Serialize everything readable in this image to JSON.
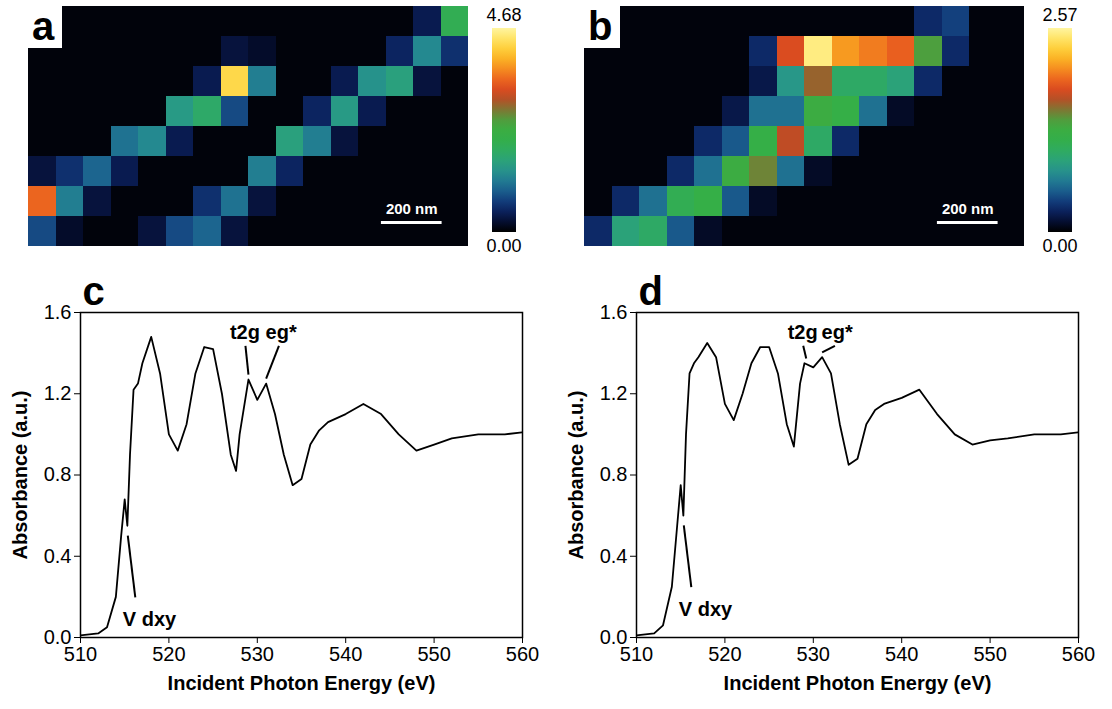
{
  "chart_data": [
    {
      "type": "heatmap",
      "panel_label": "a",
      "tick_labels": false,
      "xlim": [
        0,
        1450
      ],
      "ylim": [
        0,
        580
      ],
      "cells": [
        [
          0.05,
          0.05,
          0.05,
          0.05,
          0.05,
          0.05,
          0.05,
          0.05,
          0.05,
          0.05,
          0.05,
          0.05,
          0.05,
          0.05,
          0.4,
          2.0
        ],
        [
          0.05,
          0.05,
          0.05,
          0.05,
          0.05,
          0.05,
          0.05,
          0.3,
          0.2,
          0.05,
          0.05,
          0.05,
          0.05,
          0.5,
          1.3,
          0.6
        ],
        [
          0.05,
          0.05,
          0.05,
          0.05,
          0.05,
          0.05,
          0.4,
          4.3,
          1.2,
          0.05,
          0.05,
          0.4,
          1.4,
          1.6,
          0.3,
          0.05
        ],
        [
          0.05,
          0.05,
          0.05,
          0.05,
          0.05,
          1.5,
          1.8,
          0.8,
          0.05,
          0.05,
          0.5,
          1.5,
          0.4,
          0.05,
          0.05,
          0.05
        ],
        [
          0.05,
          0.05,
          0.05,
          1.1,
          1.3,
          0.4,
          0.05,
          0.05,
          0.05,
          1.6,
          1.2,
          0.3,
          0.05,
          0.05,
          0.05,
          0.05
        ],
        [
          0.3,
          0.6,
          1.0,
          0.4,
          0.05,
          0.05,
          0.05,
          0.05,
          1.2,
          0.5,
          0.05,
          0.05,
          0.05,
          0.05,
          0.05,
          0.05
        ],
        [
          3.5,
          1.2,
          0.3,
          0.05,
          0.05,
          0.05,
          0.6,
          1.1,
          0.3,
          0.05,
          0.05,
          0.05,
          0.05,
          0.05,
          0.05,
          0.05
        ],
        [
          0.8,
          0.2,
          0.05,
          0.05,
          0.3,
          0.8,
          1.0,
          0.3,
          0.05,
          0.05,
          0.05,
          0.05,
          0.05,
          0.05,
          0.05,
          0.05
        ]
      ],
      "colorbar": {
        "range": [
          0,
          4.68
        ],
        "ticks": [
          {
            "value": 0,
            "label": "0.00"
          },
          4.68
        ]
      },
      "scale_bar": {
        "length": 200,
        "label": "200 nm"
      }
    },
    {
      "type": "heatmap",
      "panel_label": "b",
      "tick_labels": false,
      "xlim": [
        0,
        1450
      ],
      "ylim": [
        0,
        580
      ],
      "cells": [
        [
          0.03,
          0.03,
          0.03,
          0.03,
          0.03,
          0.03,
          0.03,
          0.03,
          0.03,
          0.03,
          0.03,
          0.03,
          0.3,
          0.4,
          0.03,
          0.03
        ],
        [
          0.03,
          0.03,
          0.03,
          0.03,
          0.03,
          0.03,
          0.3,
          1.8,
          2.5,
          2.1,
          2.0,
          1.9,
          1.4,
          0.3,
          0.03,
          0.03
        ],
        [
          0.03,
          0.03,
          0.03,
          0.03,
          0.03,
          0.03,
          0.2,
          0.8,
          1.6,
          1.0,
          1.0,
          0.9,
          0.3,
          0.03,
          0.03,
          0.03
        ],
        [
          0.03,
          0.03,
          0.03,
          0.03,
          0.03,
          0.2,
          0.6,
          0.6,
          1.3,
          1.2,
          0.6,
          0.1,
          0.03,
          0.03,
          0.03,
          0.03
        ],
        [
          0.03,
          0.03,
          0.03,
          0.03,
          0.3,
          0.5,
          1.2,
          1.7,
          1.0,
          0.3,
          0.03,
          0.03,
          0.03,
          0.03,
          0.03,
          0.03
        ],
        [
          0.03,
          0.03,
          0.03,
          0.3,
          0.6,
          1.3,
          1.5,
          0.6,
          0.1,
          0.03,
          0.03,
          0.03,
          0.03,
          0.03,
          0.03,
          0.03
        ],
        [
          0.03,
          0.3,
          0.6,
          1.1,
          1.2,
          0.5,
          0.1,
          0.03,
          0.03,
          0.03,
          0.03,
          0.03,
          0.03,
          0.03,
          0.03,
          0.03
        ],
        [
          0.3,
          0.9,
          1.0,
          0.5,
          0.1,
          0.03,
          0.03,
          0.03,
          0.03,
          0.03,
          0.03,
          0.03,
          0.03,
          0.03,
          0.03,
          0.03
        ]
      ],
      "colorbar": {
        "range": [
          0,
          2.57
        ],
        "ticks": [
          {
            "value": 0,
            "label": "0.00"
          },
          2.57
        ]
      },
      "scale_bar": {
        "length": 200,
        "label": "200 nm"
      }
    },
    {
      "type": "line",
      "panel_label": "c",
      "color": "#000000",
      "x_label": "Incident Photon Energy (eV)",
      "y_label": "Absorbance (a.u.)",
      "xlim": [
        510,
        560
      ],
      "ylim": [
        0,
        1.6
      ],
      "xticks": [
        510,
        520,
        530,
        540,
        550,
        560
      ],
      "yticks": [
        {
          "value": 0,
          "label": "0.0"
        },
        0.4,
        0.8,
        1.2,
        1.6
      ],
      "x": [
        510,
        512,
        513,
        514,
        514.6,
        515,
        515.3,
        515.6,
        516,
        516.5,
        517,
        518,
        519,
        520,
        521,
        522,
        523,
        524,
        525,
        526,
        527,
        527.6,
        528,
        529,
        530,
        531,
        532,
        533,
        534,
        535,
        536,
        537,
        538,
        540,
        542,
        544,
        546,
        548,
        550,
        552,
        555,
        558,
        560
      ],
      "values": [
        0.01,
        0.02,
        0.05,
        0.2,
        0.5,
        0.68,
        0.55,
        0.9,
        1.22,
        1.25,
        1.35,
        1.48,
        1.3,
        1.0,
        0.92,
        1.05,
        1.3,
        1.43,
        1.42,
        1.2,
        0.9,
        0.82,
        1.0,
        1.27,
        1.17,
        1.25,
        1.1,
        0.9,
        0.75,
        0.78,
        0.95,
        1.02,
        1.06,
        1.1,
        1.15,
        1.1,
        1.0,
        0.92,
        0.95,
        0.98,
        1.0,
        1.0,
        1.01
      ],
      "annotations": [
        {
          "text": "V dxy",
          "x": 515.2,
          "y": 0.55
        },
        {
          "text": "t2g",
          "x": 529,
          "y": 1.27
        },
        {
          "text": "eg*",
          "x": 531,
          "y": 1.25
        }
      ]
    },
    {
      "type": "line",
      "panel_label": "d",
      "color": "#000000",
      "x_label": "Incident Photon Energy (eV)",
      "y_label": "Absorbance (a.u.)",
      "xlim": [
        510,
        560
      ],
      "ylim": [
        0,
        1.6
      ],
      "xticks": [
        510,
        520,
        530,
        540,
        550,
        560
      ],
      "yticks": [
        {
          "value": 0,
          "label": "0.0"
        },
        0.4,
        0.8,
        1.2,
        1.6
      ],
      "x": [
        510,
        512,
        513,
        514,
        514.6,
        515,
        515.3,
        515.6,
        516,
        516.5,
        517,
        518,
        519,
        520,
        521,
        522,
        523,
        524,
        525,
        526,
        527,
        527.8,
        528.5,
        529,
        530,
        531,
        532,
        533,
        534,
        535,
        536,
        537,
        538,
        540,
        542,
        544,
        546,
        548,
        550,
        552,
        555,
        558,
        560
      ],
      "values": [
        0.01,
        0.02,
        0.06,
        0.25,
        0.55,
        0.75,
        0.6,
        1.0,
        1.3,
        1.35,
        1.38,
        1.45,
        1.38,
        1.15,
        1.07,
        1.2,
        1.35,
        1.43,
        1.43,
        1.3,
        1.05,
        0.94,
        1.25,
        1.35,
        1.33,
        1.38,
        1.3,
        1.05,
        0.85,
        0.88,
        1.05,
        1.12,
        1.15,
        1.18,
        1.22,
        1.1,
        1.0,
        0.95,
        0.97,
        0.98,
        1.0,
        1.0,
        1.01
      ],
      "annotations": [
        {
          "text": "V dxy",
          "x": 515.2,
          "y": 0.6
        },
        {
          "text": "t2g",
          "x": 529.2,
          "y": 1.35
        },
        {
          "text": "eg*",
          "x": 531,
          "y": 1.38
        }
      ]
    }
  ]
}
